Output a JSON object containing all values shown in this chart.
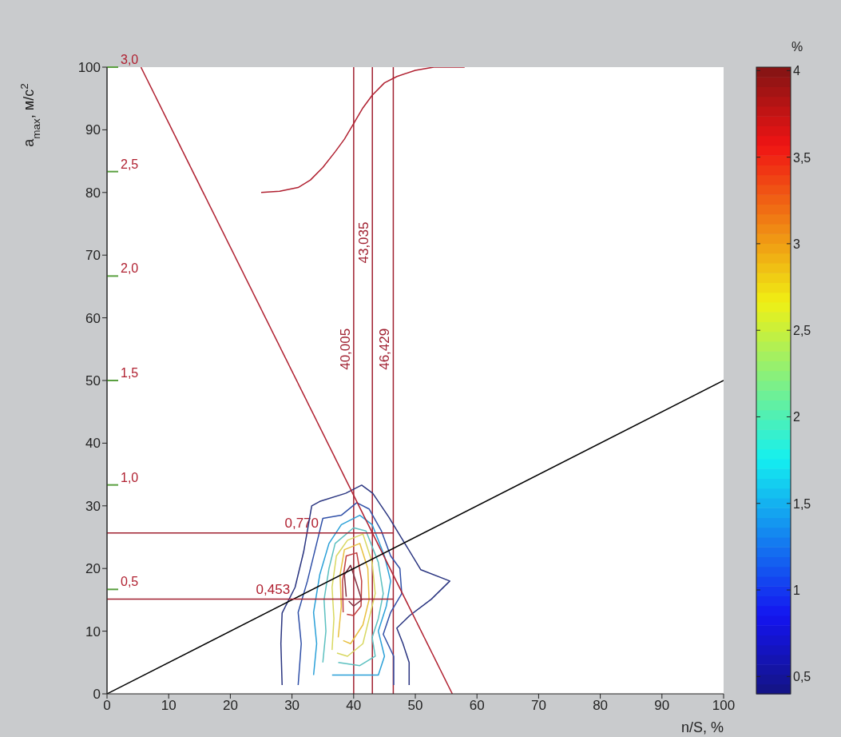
{
  "chart_data": {
    "type": "line",
    "xlabel": "n/S, %",
    "ylabel": "a$_{max}$, м/с$^{2}$",
    "clabel": "%",
    "xlim": [
      0,
      100
    ],
    "xticks": [
      0,
      10,
      20,
      30,
      40,
      50,
      60,
      70,
      80,
      90,
      100
    ],
    "ylim": [
      0,
      100
    ],
    "yticks": [
      0,
      10,
      20,
      30,
      40,
      50,
      60,
      70,
      80,
      90,
      100
    ],
    "y2lim": [
      0,
      3
    ],
    "y2ticks": [
      {
        "value": 0.5,
        "label": "0,5"
      },
      {
        "value": 1,
        "label": "1,0"
      },
      {
        "value": 1.5,
        "label": "1,5"
      },
      {
        "value": 2,
        "label": "2,0"
      },
      {
        "value": 2.5,
        "label": "2,5"
      },
      {
        "value": 3,
        "label": "3,0"
      }
    ],
    "clim": [
      0.4,
      4.02
    ],
    "cticks": [
      {
        "value": 0.5,
        "label": "0,5"
      },
      1,
      {
        "value": 1.5,
        "label": "1,5"
      },
      2,
      {
        "value": 2.5,
        "label": "2,5"
      },
      3,
      {
        "value": 3.5,
        "label": "3,5"
      },
      4
    ],
    "marker": "none",
    "line_style": "solid",
    "series": [
      {
        "color": "#2a3580",
        "x": [
          28.4,
          28.2,
          28.4,
          30.5,
          31.9,
          33.2,
          34.5,
          38.7,
          41.3,
          43.1,
          45.7,
          48.3,
          50.9,
          55.6,
          52.6,
          49.1,
          47,
          48,
          49,
          49
        ],
        "values": [
          1.4,
          8,
          12.9,
          17,
          22.7,
          30,
          30.7,
          32,
          33.3,
          32,
          28.2,
          24,
          19.8,
          18,
          15.1,
          12.5,
          10.5,
          8,
          5,
          1.4
        ]
      },
      {
        "color": "#3050a8",
        "x": [
          31,
          31.5,
          31,
          32.5,
          34,
          35,
          38,
          40.5,
          42.5,
          44.5,
          46,
          47.5,
          47.8,
          46,
          44.8,
          46.5,
          46.5
        ],
        "values": [
          1.4,
          8,
          13,
          18,
          24,
          28,
          28.5,
          30.5,
          29.5,
          26,
          22,
          20,
          16,
          13,
          9.5,
          6,
          1.4
        ]
      },
      {
        "color": "#2aa0d8",
        "x": [
          33.5,
          34,
          33.5,
          34.5,
          36,
          38,
          41,
          43,
          45,
          46,
          45.3,
          44,
          45,
          44,
          40,
          36.5
        ],
        "values": [
          3,
          8,
          13,
          19,
          24,
          27,
          28.5,
          27,
          22,
          18,
          14,
          10,
          6,
          3,
          3,
          3
        ]
      },
      {
        "color": "#5cc0c0",
        "x": [
          35,
          35.5,
          35.2,
          36,
          37,
          40,
          42,
          44,
          44.8,
          44,
          43,
          43.5,
          41,
          37.5
        ],
        "values": [
          5,
          10,
          15,
          20,
          24,
          26.5,
          26,
          21,
          16,
          12,
          9,
          6,
          4.5,
          5
        ]
      },
      {
        "color": "#d8d860",
        "x": [
          36.5,
          36.8,
          36.5,
          37.2,
          39,
          41.5,
          43,
          43.5,
          42.5,
          41.5,
          39,
          37.3
        ],
        "values": [
          7,
          12,
          17,
          22,
          24.5,
          25.5,
          21,
          16,
          12,
          8,
          6,
          6.5
        ]
      },
      {
        "color": "#e8c040",
        "x": [
          37.5,
          38,
          37.8,
          38.5,
          41,
          42.3,
          42.5,
          41.5,
          39.5,
          38.3
        ],
        "values": [
          9,
          14,
          19,
          23,
          24,
          20,
          15,
          11,
          8,
          8.5
        ]
      },
      {
        "color": "#c04040",
        "x": [
          38.3,
          38.2,
          38.8,
          40.5,
          41.3,
          41.2,
          40,
          38.9
        ],
        "values": [
          13,
          18,
          22,
          22.5,
          18,
          14,
          12.5,
          12.7
        ]
      },
      {
        "color": "#803040",
        "x": [
          38.8,
          38.5,
          39.5,
          40.5,
          41.3,
          40,
          39.2
        ],
        "values": [
          15.5,
          19,
          20.5,
          17.5,
          15,
          14,
          14.8
        ]
      },
      {
        "color": "#b02030",
        "x": [
          5.5,
          56
        ],
        "values": [
          100,
          0
        ]
      },
      {
        "color": "#000000",
        "x": [
          0,
          100
        ],
        "values": [
          0,
          50
        ]
      },
      {
        "color": "#b02030",
        "x": [
          25,
          28,
          31,
          33,
          35,
          37,
          38.5,
          40,
          41.5,
          43,
          45,
          47,
          50,
          53,
          58
        ],
        "values": [
          80,
          80.2,
          80.8,
          82,
          84,
          86.5,
          88.5,
          91,
          93.5,
          95.5,
          97.5,
          98.5,
          99.5,
          100,
          100
        ]
      },
      {
        "color": "#a02030",
        "axis": "y2",
        "x": [
          0,
          46.429
        ],
        "values": [
          0.77,
          0.77
        ]
      },
      {
        "color": "#a02030",
        "axis": "y2",
        "x": [
          0,
          46.429
        ],
        "values": [
          0.453,
          0.453
        ]
      }
    ],
    "ref_lines": [
      {
        "axis": "x",
        "value": 40.005,
        "label": "40,005",
        "color": "#a02030"
      },
      {
        "axis": "x",
        "value": 43.035,
        "label": "43,035",
        "color": "#a02030"
      },
      {
        "axis": "x",
        "value": 46.429,
        "label": "46,429",
        "color": "#a02030"
      }
    ],
    "annotations": [
      "0,770",
      "0,453"
    ]
  }
}
